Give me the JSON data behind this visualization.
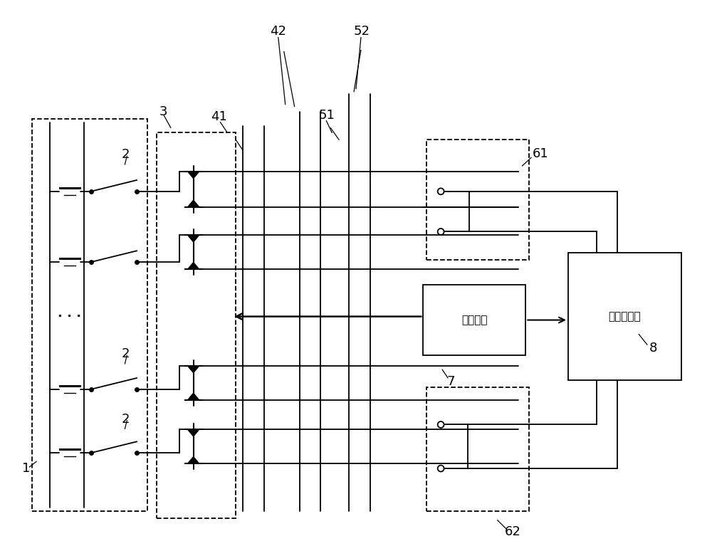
{
  "bg_color": "#ffffff",
  "box7_text": "微控制器",
  "box8_text": "正激变换器",
  "figsize": [
    10.0,
    7.74
  ]
}
